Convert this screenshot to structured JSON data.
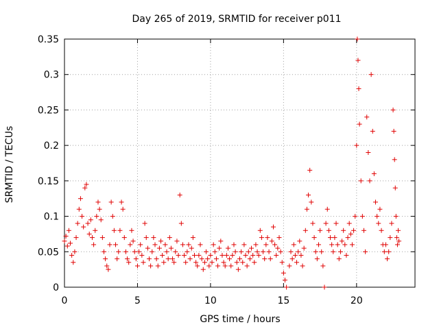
{
  "chart_data": {
    "type": "scatter",
    "title": "Day 265 of 2019, SRMTID for receiver p011",
    "xlabel": "GPS time / hours",
    "ylabel": "SRMTID / TECUs",
    "xlim": [
      0,
      24
    ],
    "ylim": [
      0,
      0.35
    ],
    "x_ticks": [
      0,
      5,
      10,
      15,
      20
    ],
    "x_tick_labels": [
      "0",
      "5",
      "10",
      "15",
      "20"
    ],
    "y_ticks": [
      0,
      0.05,
      0.1,
      0.15,
      0.2,
      0.25,
      0.3,
      0.35
    ],
    "y_tick_labels": [
      "0",
      "0.05",
      "0.1",
      "0.15",
      "0.2",
      "0.25",
      "0.3",
      "0.35"
    ],
    "grid": true,
    "marker": "plus",
    "series": [
      {
        "name": "SRMTID",
        "color": "#e00000",
        "points": [
          [
            0.0,
            0.065
          ],
          [
            0.1,
            0.072
          ],
          [
            0.2,
            0.058
          ],
          [
            0.3,
            0.08
          ],
          [
            0.4,
            0.062
          ],
          [
            0.5,
            0.045
          ],
          [
            0.6,
            0.035
          ],
          [
            0.7,
            0.05
          ],
          [
            0.8,
            0.07
          ],
          [
            0.9,
            0.09
          ],
          [
            1.0,
            0.11
          ],
          [
            1.1,
            0.125
          ],
          [
            1.2,
            0.1
          ],
          [
            1.3,
            0.085
          ],
          [
            1.4,
            0.14
          ],
          [
            1.5,
            0.145
          ],
          [
            1.6,
            0.09
          ],
          [
            1.7,
            0.075
          ],
          [
            1.8,
            0.095
          ],
          [
            1.9,
            0.07
          ],
          [
            2.0,
            0.06
          ],
          [
            2.1,
            0.08
          ],
          [
            2.2,
            0.1
          ],
          [
            2.3,
            0.12
          ],
          [
            2.4,
            0.11
          ],
          [
            2.5,
            0.095
          ],
          [
            2.6,
            0.07
          ],
          [
            2.7,
            0.05
          ],
          [
            2.8,
            0.04
          ],
          [
            2.9,
            0.03
          ],
          [
            3.0,
            0.025
          ],
          [
            3.1,
            0.06
          ],
          [
            3.2,
            0.12
          ],
          [
            3.3,
            0.1
          ],
          [
            3.4,
            0.08
          ],
          [
            3.5,
            0.06
          ],
          [
            3.6,
            0.04
          ],
          [
            3.7,
            0.05
          ],
          [
            3.8,
            0.08
          ],
          [
            3.9,
            0.12
          ],
          [
            4.0,
            0.11
          ],
          [
            4.1,
            0.07
          ],
          [
            4.2,
            0.05
          ],
          [
            4.3,
            0.04
          ],
          [
            4.4,
            0.035
          ],
          [
            4.5,
            0.06
          ],
          [
            4.6,
            0.08
          ],
          [
            4.7,
            0.065
          ],
          [
            4.8,
            0.05
          ],
          [
            4.9,
            0.04
          ],
          [
            5.0,
            0.03
          ],
          [
            5.1,
            0.05
          ],
          [
            5.2,
            0.06
          ],
          [
            5.3,
            0.045
          ],
          [
            5.4,
            0.035
          ],
          [
            5.5,
            0.09
          ],
          [
            5.6,
            0.07
          ],
          [
            5.7,
            0.055
          ],
          [
            5.8,
            0.04
          ],
          [
            5.9,
            0.03
          ],
          [
            6.0,
            0.05
          ],
          [
            6.1,
            0.07
          ],
          [
            6.2,
            0.06
          ],
          [
            6.3,
            0.04
          ],
          [
            6.4,
            0.03
          ],
          [
            6.5,
            0.055
          ],
          [
            6.6,
            0.065
          ],
          [
            6.7,
            0.045
          ],
          [
            6.8,
            0.035
          ],
          [
            6.9,
            0.06
          ],
          [
            7.0,
            0.05
          ],
          [
            7.1,
            0.04
          ],
          [
            7.2,
            0.07
          ],
          [
            7.3,
            0.055
          ],
          [
            7.4,
            0.04
          ],
          [
            7.5,
            0.035
          ],
          [
            7.6,
            0.05
          ],
          [
            7.7,
            0.065
          ],
          [
            7.8,
            0.045
          ],
          [
            7.9,
            0.13
          ],
          [
            8.0,
            0.09
          ],
          [
            8.1,
            0.06
          ],
          [
            8.2,
            0.045
          ],
          [
            8.3,
            0.035
          ],
          [
            8.4,
            0.05
          ],
          [
            8.5,
            0.06
          ],
          [
            8.6,
            0.04
          ],
          [
            8.7,
            0.055
          ],
          [
            8.8,
            0.07
          ],
          [
            8.9,
            0.045
          ],
          [
            9.0,
            0.035
          ],
          [
            9.1,
            0.03
          ],
          [
            9.2,
            0.045
          ],
          [
            9.3,
            0.06
          ],
          [
            9.4,
            0.04
          ],
          [
            9.5,
            0.025
          ],
          [
            9.6,
            0.035
          ],
          [
            9.7,
            0.05
          ],
          [
            9.8,
            0.04
          ],
          [
            9.9,
            0.03
          ],
          [
            10.0,
            0.045
          ],
          [
            10.1,
            0.035
          ],
          [
            10.2,
            0.06
          ],
          [
            10.3,
            0.05
          ],
          [
            10.4,
            0.04
          ],
          [
            10.5,
            0.03
          ],
          [
            10.6,
            0.055
          ],
          [
            10.7,
            0.065
          ],
          [
            10.8,
            0.045
          ],
          [
            10.9,
            0.035
          ],
          [
            11.0,
            0.03
          ],
          [
            11.1,
            0.045
          ],
          [
            11.2,
            0.055
          ],
          [
            11.3,
            0.04
          ],
          [
            11.4,
            0.03
          ],
          [
            11.5,
            0.045
          ],
          [
            11.6,
            0.06
          ],
          [
            11.7,
            0.05
          ],
          [
            11.8,
            0.035
          ],
          [
            11.9,
            0.025
          ],
          [
            12.0,
            0.04
          ],
          [
            12.1,
            0.05
          ],
          [
            12.2,
            0.035
          ],
          [
            12.3,
            0.06
          ],
          [
            12.4,
            0.045
          ],
          [
            12.5,
            0.03
          ],
          [
            12.6,
            0.05
          ],
          [
            12.7,
            0.04
          ],
          [
            12.8,
            0.055
          ],
          [
            12.9,
            0.045
          ],
          [
            13.0,
            0.035
          ],
          [
            13.1,
            0.06
          ],
          [
            13.2,
            0.05
          ],
          [
            13.3,
            0.045
          ],
          [
            13.4,
            0.08
          ],
          [
            13.5,
            0.07
          ],
          [
            13.6,
            0.05
          ],
          [
            13.7,
            0.04
          ],
          [
            13.8,
            0.06
          ],
          [
            13.9,
            0.07
          ],
          [
            14.0,
            0.05
          ],
          [
            14.1,
            0.04
          ],
          [
            14.2,
            0.065
          ],
          [
            14.3,
            0.085
          ],
          [
            14.4,
            0.06
          ],
          [
            14.5,
            0.045
          ],
          [
            14.6,
            0.055
          ],
          [
            14.7,
            0.07
          ],
          [
            14.8,
            0.05
          ],
          [
            14.9,
            0.035
          ],
          [
            15.0,
            0.02
          ],
          [
            15.1,
            0.01
          ],
          [
            15.2,
            0.0
          ],
          [
            15.4,
            0.03
          ],
          [
            15.5,
            0.05
          ],
          [
            15.6,
            0.04
          ],
          [
            15.7,
            0.06
          ],
          [
            15.8,
            0.045
          ],
          [
            15.9,
            0.035
          ],
          [
            16.0,
            0.05
          ],
          [
            16.1,
            0.065
          ],
          [
            16.2,
            0.045
          ],
          [
            16.3,
            0.03
          ],
          [
            16.4,
            0.055
          ],
          [
            16.5,
            0.08
          ],
          [
            16.6,
            0.11
          ],
          [
            16.7,
            0.13
          ],
          [
            16.8,
            0.165
          ],
          [
            16.9,
            0.12
          ],
          [
            17.0,
            0.09
          ],
          [
            17.1,
            0.07
          ],
          [
            17.2,
            0.05
          ],
          [
            17.3,
            0.04
          ],
          [
            17.4,
            0.06
          ],
          [
            17.5,
            0.08
          ],
          [
            17.6,
            0.05
          ],
          [
            17.7,
            0.03
          ],
          [
            17.8,
            0.0
          ],
          [
            17.9,
            0.09
          ],
          [
            18.0,
            0.11
          ],
          [
            18.1,
            0.08
          ],
          [
            18.2,
            0.07
          ],
          [
            18.3,
            0.06
          ],
          [
            18.4,
            0.05
          ],
          [
            18.5,
            0.07
          ],
          [
            18.6,
            0.09
          ],
          [
            18.7,
            0.06
          ],
          [
            18.8,
            0.04
          ],
          [
            18.9,
            0.05
          ],
          [
            19.0,
            0.065
          ],
          [
            19.1,
            0.08
          ],
          [
            19.2,
            0.06
          ],
          [
            19.3,
            0.045
          ],
          [
            19.4,
            0.07
          ],
          [
            19.5,
            0.09
          ],
          [
            19.6,
            0.075
          ],
          [
            19.7,
            0.06
          ],
          [
            19.8,
            0.08
          ],
          [
            19.9,
            0.1
          ],
          [
            20.0,
            0.2
          ],
          [
            20.05,
            0.35
          ],
          [
            20.1,
            0.32
          ],
          [
            20.15,
            0.28
          ],
          [
            20.2,
            0.23
          ],
          [
            20.3,
            0.15
          ],
          [
            20.4,
            0.1
          ],
          [
            20.5,
            0.08
          ],
          [
            20.6,
            0.05
          ],
          [
            20.7,
            0.24
          ],
          [
            20.8,
            0.19
          ],
          [
            20.9,
            0.15
          ],
          [
            21.0,
            0.3
          ],
          [
            21.1,
            0.22
          ],
          [
            21.2,
            0.16
          ],
          [
            21.3,
            0.12
          ],
          [
            21.4,
            0.1
          ],
          [
            21.5,
            0.09
          ],
          [
            21.6,
            0.11
          ],
          [
            21.7,
            0.08
          ],
          [
            21.8,
            0.06
          ],
          [
            21.9,
            0.05
          ],
          [
            22.0,
            0.06
          ],
          [
            22.1,
            0.04
          ],
          [
            22.2,
            0.05
          ],
          [
            22.3,
            0.07
          ],
          [
            22.4,
            0.09
          ],
          [
            22.5,
            0.25
          ],
          [
            22.55,
            0.22
          ],
          [
            22.6,
            0.18
          ],
          [
            22.65,
            0.14
          ],
          [
            22.7,
            0.1
          ],
          [
            22.75,
            0.07
          ],
          [
            22.8,
            0.06
          ],
          [
            22.85,
            0.08
          ],
          [
            22.9,
            0.065
          ]
        ]
      }
    ]
  }
}
